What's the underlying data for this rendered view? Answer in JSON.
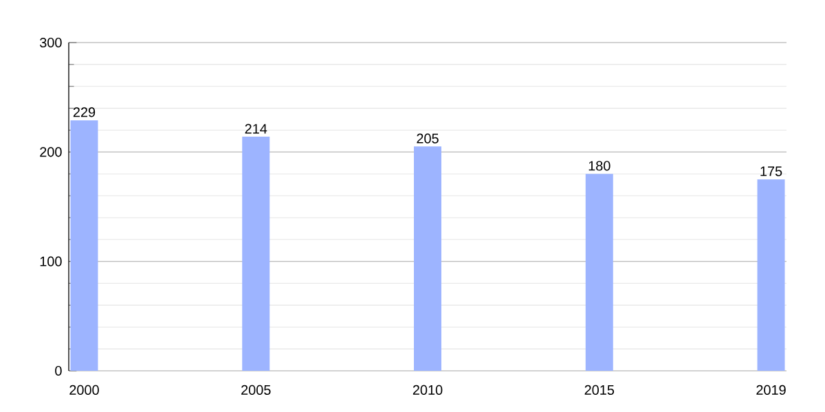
{
  "chart_data": {
    "type": "bar",
    "categories": [
      "2000",
      "2005",
      "2010",
      "2015",
      "2019"
    ],
    "values": [
      229,
      214,
      205,
      180,
      175
    ],
    "color": "#9db4ff",
    "ylim": [
      0,
      300
    ],
    "yticks": [
      0,
      100,
      200,
      300
    ],
    "grid": "y",
    "data_labels": true
  }
}
